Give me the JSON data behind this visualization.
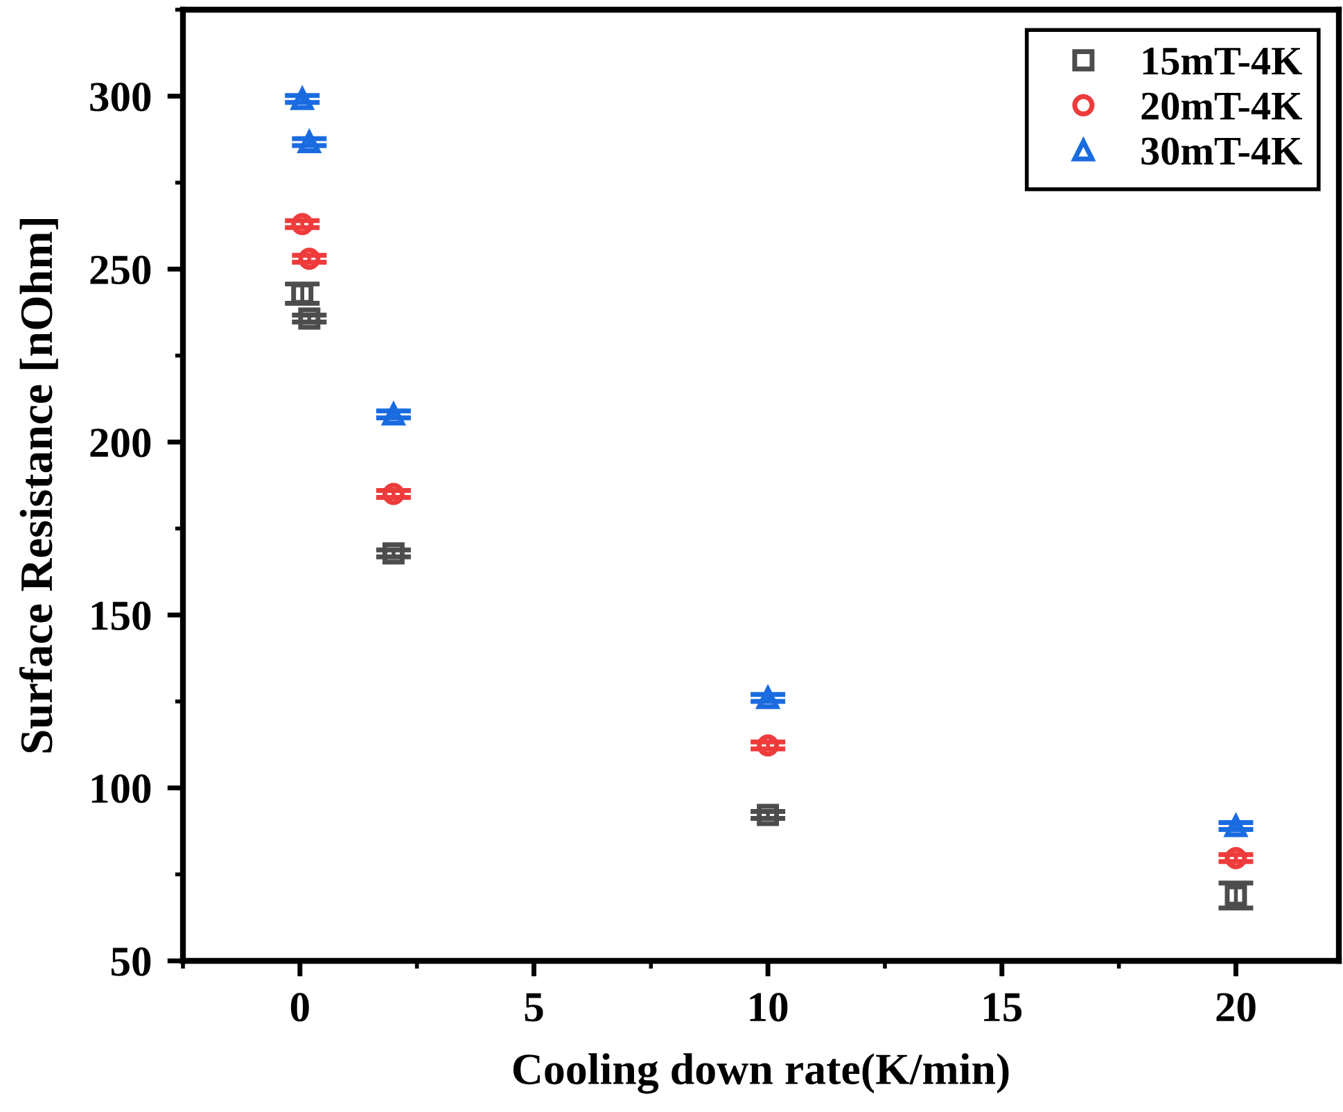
{
  "chart_data": {
    "type": "scatter",
    "xlabel": "Cooling down rate(K/min)",
    "ylabel": "Surface Resistance [nOhm]",
    "xlim": [
      -2.5,
      22.2
    ],
    "xticks": [
      0,
      5,
      10,
      15,
      20
    ],
    "ylim": [
      50,
      325
    ],
    "yticks": [
      50,
      100,
      150,
      200,
      250,
      300
    ],
    "legend": "top right",
    "grid": false,
    "series": [
      {
        "name": "15mT-4K",
        "color": "#4d4d4d",
        "marker": "square",
        "x": [
          0.05,
          0.2,
          2,
          10,
          20
        ],
        "values": [
          242.9,
          235.7,
          167.8,
          92.2,
          68.9
        ],
        "errors": [
          2.8,
          1,
          1,
          1,
          3.6
        ]
      },
      {
        "name": "20mT-4K",
        "color": "#ee3b3b",
        "marker": "circle",
        "x": [
          0.05,
          0.2,
          2,
          10,
          20
        ],
        "values": [
          263.0,
          253.0,
          185.0,
          112.3,
          79.7
        ],
        "errors": [
          1,
          1,
          1,
          1,
          1
        ]
      },
      {
        "name": "30mT-4K",
        "color": "#1a6be0",
        "marker": "triangle",
        "x": [
          0.05,
          0.2,
          2,
          10,
          20
        ],
        "values": [
          299.2,
          286.7,
          208.0,
          126.0,
          89.0
        ],
        "errors": [
          1,
          1,
          1,
          1,
          1
        ]
      }
    ]
  }
}
